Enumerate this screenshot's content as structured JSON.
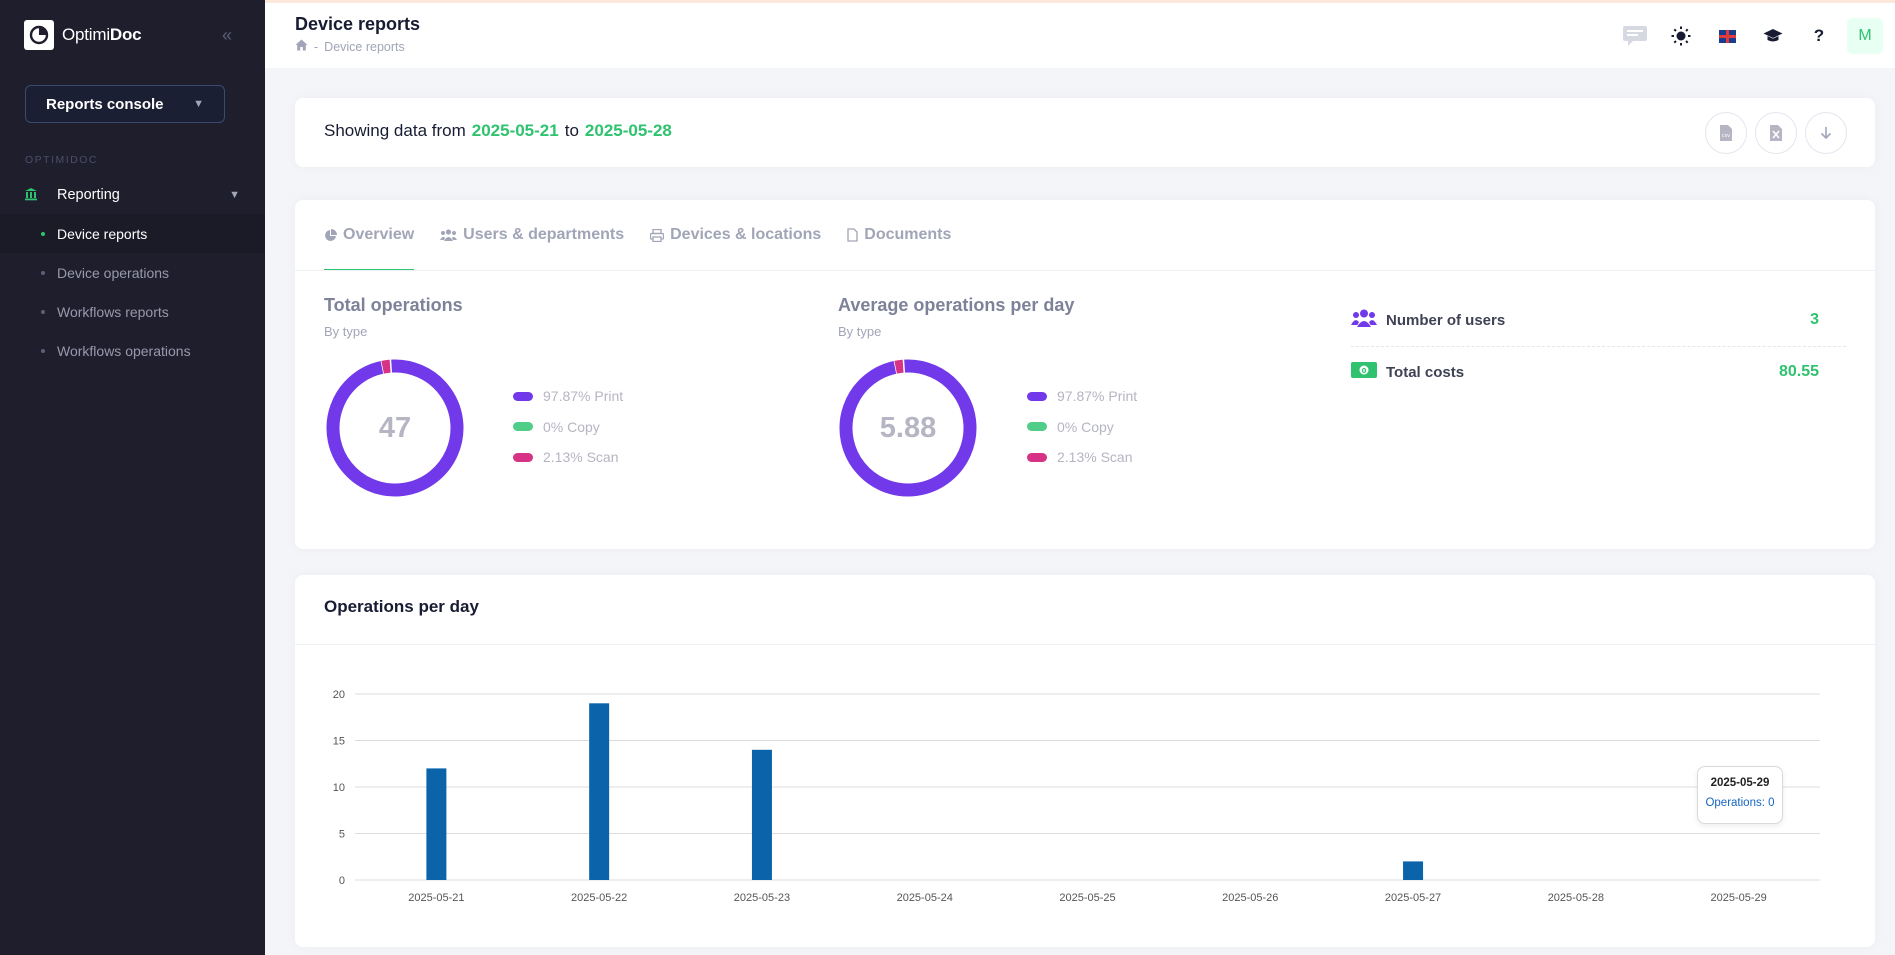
{
  "brand": {
    "prefix": "Optimi",
    "suffix": "Doc"
  },
  "sidebar": {
    "console": "Reports console",
    "section": "OPTIMIDOC",
    "group": "Reporting",
    "items": [
      {
        "label": "Device reports",
        "active": true
      },
      {
        "label": "Device operations",
        "active": false
      },
      {
        "label": "Workflows reports",
        "active": false
      },
      {
        "label": "Workflows operations",
        "active": false
      }
    ]
  },
  "header": {
    "title": "Device reports",
    "breadcrumb": "Device reports",
    "avatar_initial": "M",
    "icons": [
      "chat-icon",
      "theme-toggle-icon",
      "language-flag-icon",
      "academy-icon",
      "help-icon"
    ]
  },
  "range": {
    "prefix": "Showing data from",
    "from": "2025-05-21",
    "connector": "to",
    "to": "2025-05-28"
  },
  "tabs": [
    "Overview",
    "Users & departments",
    "Devices & locations",
    "Documents"
  ],
  "total_operations": {
    "title": "Total operations",
    "subtitle": "By type",
    "center": "47",
    "legend": [
      "97.87% Print",
      "0% Copy",
      "2.13% Scan"
    ]
  },
  "average_operations": {
    "title": "Average operations per day",
    "subtitle": "By type",
    "center": "5.88",
    "legend": [
      "97.87% Print",
      "0% Copy",
      "2.13% Scan"
    ]
  },
  "kpis": {
    "users": {
      "label": "Number of users",
      "value": "3"
    },
    "costs": {
      "label": "Total costs",
      "value": "80.55"
    }
  },
  "colors": {
    "accent": "#2fc26f",
    "print": "#7239ea",
    "copy": "#50cd89",
    "scan": "#d63384",
    "bar": "#0b63a9"
  },
  "operations_per_day": {
    "title": "Operations per day",
    "tooltip": {
      "date": "2025-05-29",
      "text": "Operations: 0"
    }
  },
  "chart_data": [
    {
      "type": "pie",
      "title": "Total operations",
      "categories": [
        "Print",
        "Copy",
        "Scan"
      ],
      "values": [
        97.87,
        0,
        2.13
      ]
    },
    {
      "type": "pie",
      "title": "Average operations per day",
      "categories": [
        "Print",
        "Copy",
        "Scan"
      ],
      "values": [
        97.87,
        0,
        2.13
      ]
    },
    {
      "type": "bar",
      "title": "Operations per day",
      "categories": [
        "2025-05-21",
        "2025-05-22",
        "2025-05-23",
        "2025-05-24",
        "2025-05-25",
        "2025-05-26",
        "2025-05-27",
        "2025-05-28",
        "2025-05-29"
      ],
      "values": [
        12,
        19,
        14,
        0,
        0,
        0,
        2,
        0,
        0
      ],
      "yticks": [
        0,
        5,
        10,
        15,
        20
      ],
      "ylim": [
        0,
        20
      ],
      "grid": true
    }
  ]
}
